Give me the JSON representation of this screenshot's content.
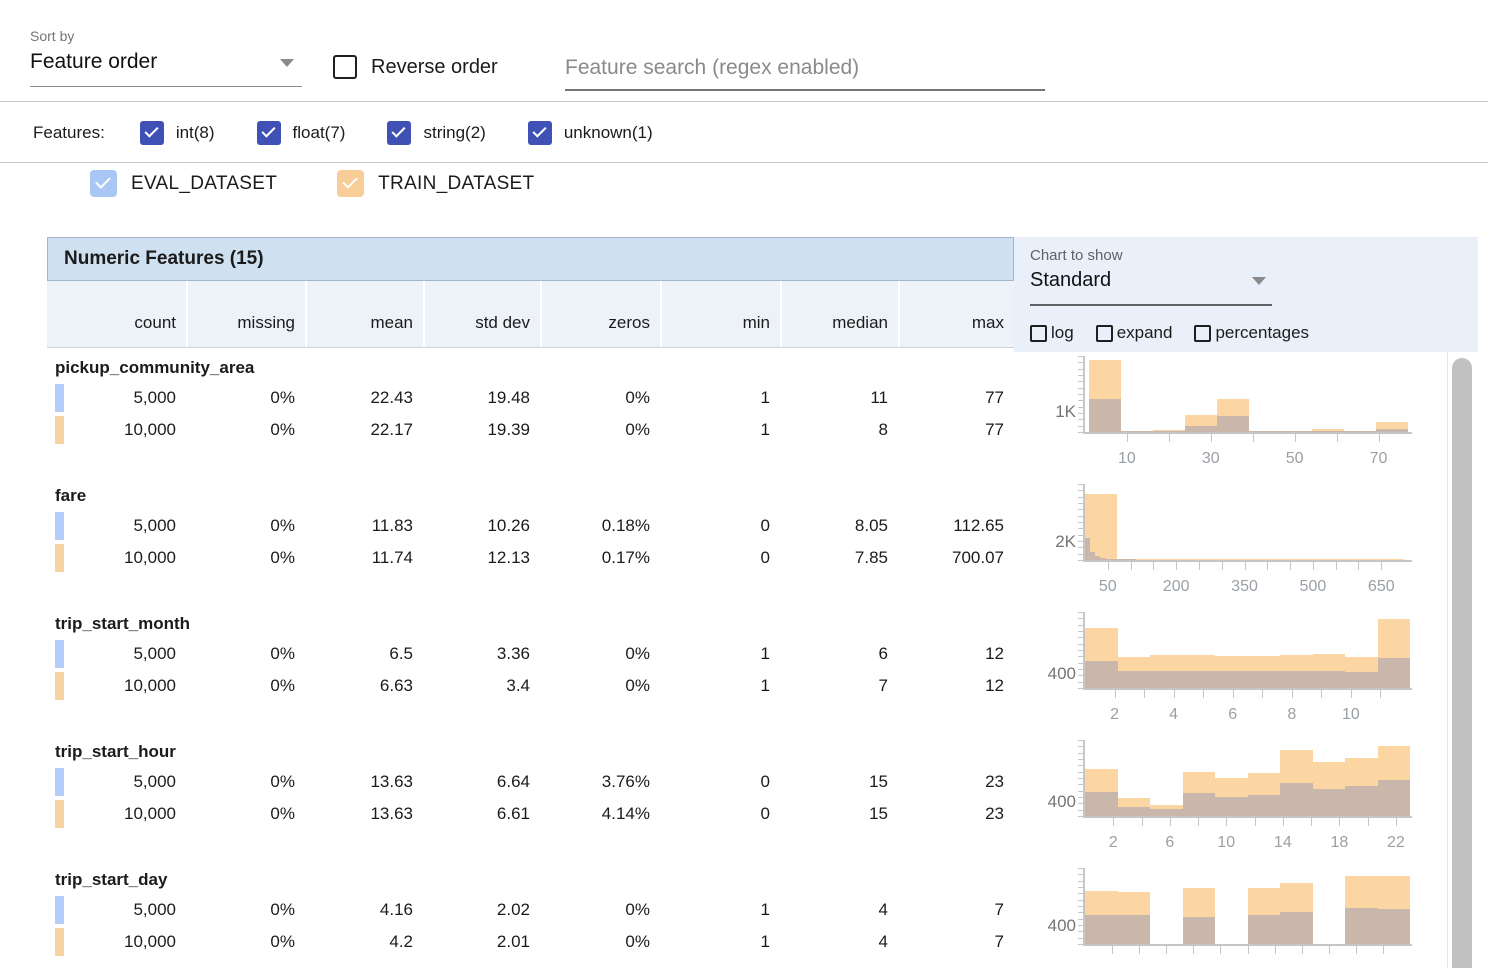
{
  "toolbar": {
    "sort_by_label": "Sort by",
    "sort_by_value": "Feature order",
    "reverse_label": "Reverse order",
    "search_placeholder": "Feature search (regex enabled)"
  },
  "features_bar": {
    "label": "Features:",
    "filters": [
      {
        "label": "int(8)",
        "checked": true
      },
      {
        "label": "float(7)",
        "checked": true
      },
      {
        "label": "string(2)",
        "checked": true
      },
      {
        "label": "unknown(1)",
        "checked": true
      }
    ]
  },
  "datasets": [
    {
      "name": "EVAL_DATASET",
      "checkbox_color": "#a9c7f4",
      "marker_color": "#b3cefb",
      "checked": true
    },
    {
      "name": "TRAIN_DATASET",
      "checkbox_color": "#f9cd98",
      "marker_color": "#f8d3a2",
      "checked": true
    }
  ],
  "chart_panel": {
    "label": "Chart to show",
    "value": "Standard",
    "options": [
      {
        "label": "log",
        "checked": false
      },
      {
        "label": "expand",
        "checked": false
      },
      {
        "label": "percentages",
        "checked": false
      }
    ]
  },
  "table": {
    "title": "Numeric Features (15)",
    "columns": [
      "count",
      "missing",
      "mean",
      "std dev",
      "zeros",
      "min",
      "median",
      "max"
    ],
    "features": [
      {
        "name": "pickup_community_area",
        "rows": [
          {
            "dataset": "EVAL_DATASET",
            "values": [
              "5,000",
              "0%",
              "22.43",
              "19.48",
              "0%",
              "1",
              "11",
              "77"
            ]
          },
          {
            "dataset": "TRAIN_DATASET",
            "values": [
              "10,000",
              "0%",
              "22.17",
              "19.39",
              "0%",
              "1",
              "8",
              "77"
            ]
          }
        ]
      },
      {
        "name": "fare",
        "rows": [
          {
            "dataset": "EVAL_DATASET",
            "values": [
              "5,000",
              "0%",
              "11.83",
              "10.26",
              "0.18%",
              "0",
              "8.05",
              "112.65"
            ]
          },
          {
            "dataset": "TRAIN_DATASET",
            "values": [
              "10,000",
              "0%",
              "11.74",
              "12.13",
              "0.17%",
              "0",
              "7.85",
              "700.07"
            ]
          }
        ]
      },
      {
        "name": "trip_start_month",
        "rows": [
          {
            "dataset": "EVAL_DATASET",
            "values": [
              "5,000",
              "0%",
              "6.5",
              "3.36",
              "0%",
              "1",
              "6",
              "12"
            ]
          },
          {
            "dataset": "TRAIN_DATASET",
            "values": [
              "10,000",
              "0%",
              "6.63",
              "3.4",
              "0%",
              "1",
              "7",
              "12"
            ]
          }
        ]
      },
      {
        "name": "trip_start_hour",
        "rows": [
          {
            "dataset": "EVAL_DATASET",
            "values": [
              "5,000",
              "0%",
              "13.63",
              "6.64",
              "3.76%",
              "0",
              "15",
              "23"
            ]
          },
          {
            "dataset": "TRAIN_DATASET",
            "values": [
              "10,000",
              "0%",
              "13.63",
              "6.61",
              "4.14%",
              "0",
              "15",
              "23"
            ]
          }
        ]
      },
      {
        "name": "trip_start_day",
        "rows": [
          {
            "dataset": "EVAL_DATASET",
            "values": [
              "5,000",
              "0%",
              "4.16",
              "2.02",
              "0%",
              "1",
              "4",
              "7"
            ]
          },
          {
            "dataset": "TRAIN_DATASET",
            "values": [
              "10,000",
              "0%",
              "4.2",
              "2.01",
              "0%",
              "1",
              "4",
              "7"
            ]
          }
        ]
      }
    ]
  },
  "colors": {
    "train_bar": "#fbd6a2",
    "overlap_bar": "#cab7ab",
    "filter_checkbox": "#3f51b5",
    "banner_bg": "#cfe0f0",
    "header_bg": "#edf2f9",
    "panel_bg": "#e9f0fa"
  },
  "chart_data": [
    {
      "feature": "pickup_community_area",
      "type": "histogram",
      "legend_position": "none",
      "grid": false,
      "ylabel": {
        "text": "1K",
        "value": 1000
      },
      "ymax": 3800,
      "xmin": 0,
      "xmax": 77.5,
      "xticks": [
        10,
        20,
        30,
        40,
        50,
        60,
        70
      ],
      "xlabels": [
        10,
        30,
        50,
        70
      ],
      "series": [
        {
          "name": "TRAIN_DATASET",
          "buckets": [
            [
              1,
              8.6,
              3580
            ],
            [
              8.6,
              16.2,
              50
            ],
            [
              16.2,
              23.8,
              100
            ],
            [
              23.8,
              31.4,
              850
            ],
            [
              31.4,
              39,
              1650
            ],
            [
              39,
              46.6,
              20
            ],
            [
              46.6,
              54.2,
              20
            ],
            [
              54.2,
              61.8,
              160
            ],
            [
              61.8,
              69.4,
              20
            ],
            [
              69.4,
              77,
              480
            ]
          ]
        },
        {
          "name": "EVAL_DATASET",
          "buckets": [
            [
              1,
              8.6,
              1660
            ],
            [
              8.6,
              16.2,
              25
            ],
            [
              16.2,
              23.8,
              50
            ],
            [
              23.8,
              31.4,
              320
            ],
            [
              31.4,
              39,
              800
            ],
            [
              39,
              46.6,
              10
            ],
            [
              46.6,
              54.2,
              10
            ],
            [
              54.2,
              61.8,
              60
            ],
            [
              61.8,
              69.4,
              10
            ],
            [
              69.4,
              77,
              160
            ]
          ]
        }
      ]
    },
    {
      "feature": "fare",
      "type": "histogram",
      "legend_position": "none",
      "grid": false,
      "ylabel": {
        "text": "2K",
        "value": 2000
      },
      "ymax": 8600,
      "xmin": 0,
      "xmax": 713,
      "xticks": [
        50,
        100,
        150,
        200,
        250,
        300,
        350,
        400,
        450,
        500,
        550,
        600,
        650
      ],
      "xlabels": [
        50,
        200,
        350,
        500,
        650
      ],
      "series": [
        {
          "name": "TRAIN_DATASET",
          "buckets": [
            [
              0,
              70,
              7450
            ],
            [
              70,
              140,
              60
            ],
            [
              140,
              210,
              25
            ],
            [
              210,
              280,
              12
            ],
            [
              280,
              350,
              8
            ],
            [
              350,
              420,
              5
            ],
            [
              420,
              490,
              4
            ],
            [
              490,
              560,
              3
            ],
            [
              560,
              630,
              2
            ],
            [
              630,
              700,
              2
            ]
          ]
        },
        {
          "name": "EVAL_DATASET",
          "buckets": [
            [
              0,
              11.3,
              2450
            ],
            [
              11.3,
              22.5,
              890
            ],
            [
              22.5,
              33.8,
              440
            ],
            [
              33.8,
              45,
              180
            ],
            [
              45,
              56.3,
              80
            ],
            [
              56.3,
              67.6,
              40
            ],
            [
              67.6,
              78.8,
              20
            ],
            [
              78.8,
              90.1,
              10
            ],
            [
              90.1,
              101.4,
              6
            ],
            [
              101.4,
              112.7,
              4
            ]
          ]
        }
      ]
    },
    {
      "feature": "trip_start_month",
      "type": "histogram",
      "legend_position": "none",
      "grid": false,
      "ylabel": {
        "text": "400",
        "value": 400
      },
      "ymax": 2100,
      "xmin": 1,
      "xmax": 12,
      "xticks": [
        2,
        3,
        4,
        5,
        6,
        7,
        8,
        9,
        10,
        11
      ],
      "xlabels": [
        2,
        4,
        6,
        8,
        10
      ],
      "series": [
        {
          "name": "TRAIN_DATASET",
          "buckets": [
            [
              1,
              2.1,
              1660
            ],
            [
              2.1,
              3.2,
              870
            ],
            [
              3.2,
              4.3,
              900
            ],
            [
              4.3,
              5.4,
              900
            ],
            [
              5.4,
              6.5,
              880
            ],
            [
              6.5,
              7.6,
              880
            ],
            [
              7.6,
              8.7,
              900
            ],
            [
              8.7,
              9.8,
              950
            ],
            [
              9.8,
              10.9,
              870
            ],
            [
              10.9,
              12,
              1915
            ]
          ]
        },
        {
          "name": "EVAL_DATASET",
          "buckets": [
            [
              1,
              2.1,
              745
            ],
            [
              2.1,
              3.2,
              460
            ],
            [
              3.2,
              4.3,
              460
            ],
            [
              4.3,
              5.4,
              470
            ],
            [
              5.4,
              6.5,
              470
            ],
            [
              6.5,
              7.6,
              465
            ],
            [
              7.6,
              8.7,
              460
            ],
            [
              8.7,
              9.8,
              460
            ],
            [
              9.8,
              10.9,
              455
            ],
            [
              10.9,
              12,
              830
            ]
          ]
        }
      ]
    },
    {
      "feature": "trip_start_hour",
      "type": "histogram",
      "legend_position": "none",
      "grid": false,
      "ylabel": {
        "text": "400",
        "value": 400
      },
      "ymax": 2100,
      "xmin": 0,
      "xmax": 23,
      "xticks": [
        2,
        4,
        6,
        8,
        10,
        12,
        14,
        16,
        18,
        20,
        22
      ],
      "xlabels": [
        2,
        6,
        10,
        14,
        18,
        22
      ],
      "series": [
        {
          "name": "TRAIN_DATASET",
          "buckets": [
            [
              0,
              2.3,
              1290
            ],
            [
              2.3,
              4.6,
              490
            ],
            [
              4.6,
              6.9,
              315
            ],
            [
              6.9,
              9.2,
              1230
            ],
            [
              9.2,
              11.5,
              1060
            ],
            [
              11.5,
              13.8,
              1200
            ],
            [
              13.8,
              16.1,
              1830
            ],
            [
              16.1,
              18.4,
              1490
            ],
            [
              18.4,
              20.7,
              1600
            ],
            [
              20.7,
              23,
              1945
            ]
          ]
        },
        {
          "name": "EVAL_DATASET",
          "buckets": [
            [
              0,
              2.3,
              660
            ],
            [
              2.3,
              4.6,
              257
            ],
            [
              4.6,
              6.9,
              190
            ],
            [
              6.9,
              9.2,
              640
            ],
            [
              9.2,
              11.5,
              525
            ],
            [
              11.5,
              13.8,
              570
            ],
            [
              13.8,
              16.1,
              905
            ],
            [
              16.1,
              18.4,
              760
            ],
            [
              18.4,
              20.7,
              830
            ],
            [
              20.7,
              23,
              1000
            ]
          ]
        }
      ]
    },
    {
      "feature": "trip_start_day",
      "type": "histogram",
      "legend_position": "none",
      "grid": false,
      "ylabel": {
        "text": "400",
        "value": 400
      },
      "ymax": 1700,
      "xmin": 1,
      "xmax": 7,
      "xticks": [
        1.5,
        2,
        2.5,
        3,
        3.5,
        4,
        4.5,
        5,
        5.5,
        6,
        6.5
      ],
      "xlabels": [],
      "series": [
        {
          "name": "TRAIN_DATASET",
          "buckets": [
            [
              1,
              1.6,
              1180
            ],
            [
              1.6,
              2.2,
              1170
            ],
            [
              2.2,
              2.8,
              0
            ],
            [
              2.8,
              3.4,
              1245
            ],
            [
              3.4,
              4,
              0
            ],
            [
              4,
              4.6,
              1250
            ],
            [
              4.6,
              5.2,
              1355
            ],
            [
              5.2,
              5.8,
              0
            ],
            [
              5.8,
              6.4,
              1530
            ],
            [
              6.4,
              7,
              1520
            ]
          ]
        },
        {
          "name": "EVAL_DATASET",
          "buckets": [
            [
              1,
              1.6,
              645
            ],
            [
              1.6,
              2.2,
              640
            ],
            [
              2.2,
              2.8,
              0
            ],
            [
              2.8,
              3.4,
              600
            ],
            [
              3.4,
              4,
              0
            ],
            [
              4,
              4.6,
              640
            ],
            [
              4.6,
              5.2,
              710
            ],
            [
              5.2,
              5.8,
              0
            ],
            [
              5.8,
              6.4,
              800
            ],
            [
              6.4,
              7,
              790
            ]
          ]
        }
      ]
    }
  ]
}
